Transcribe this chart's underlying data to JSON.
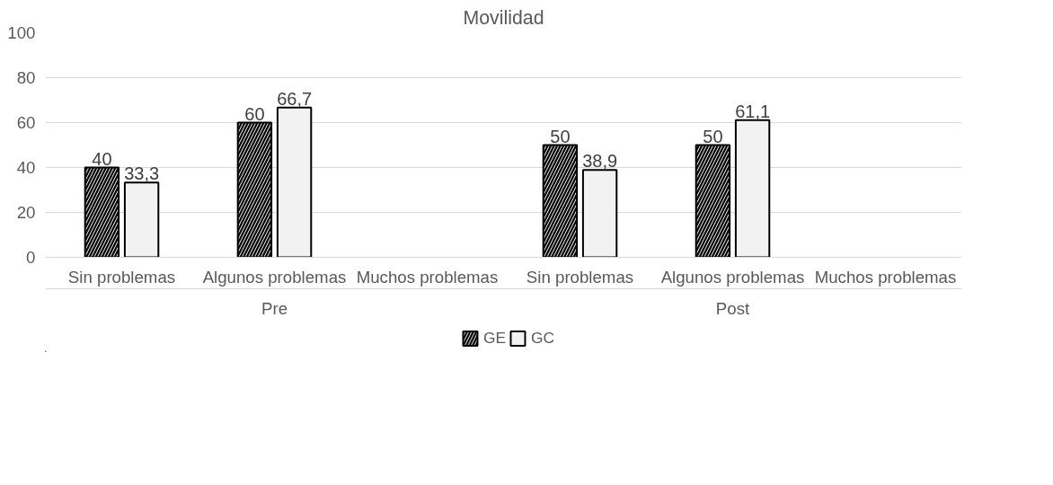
{
  "chart_data": {
    "type": "bar",
    "title": "Movilidad",
    "categories": [
      "Sin problemas",
      "Algunos problemas",
      "Muchos problemas",
      "Sin problemas",
      "Algunos problemas",
      "Muchos problemas"
    ],
    "series": [
      {
        "name": "GE",
        "color": "#000000",
        "values": [
          40,
          60,
          null,
          50,
          50,
          null
        ],
        "value_labels": [
          "40",
          "60",
          null,
          "50",
          "50",
          null
        ]
      },
      {
        "name": "GC",
        "color": "#f2f2f2",
        "values": [
          33.3,
          66.7,
          null,
          38.9,
          61.1,
          null
        ],
        "value_labels": [
          "33,3",
          "66,7",
          null,
          "38,9",
          "61,1",
          null
        ]
      }
    ],
    "annotations": [
      "Pre",
      "Post"
    ],
    "ylim": [
      0,
      100
    ],
    "yticks": [
      0,
      20,
      40,
      60,
      80,
      100
    ],
    "grid": "y",
    "legend": "bottom"
  }
}
